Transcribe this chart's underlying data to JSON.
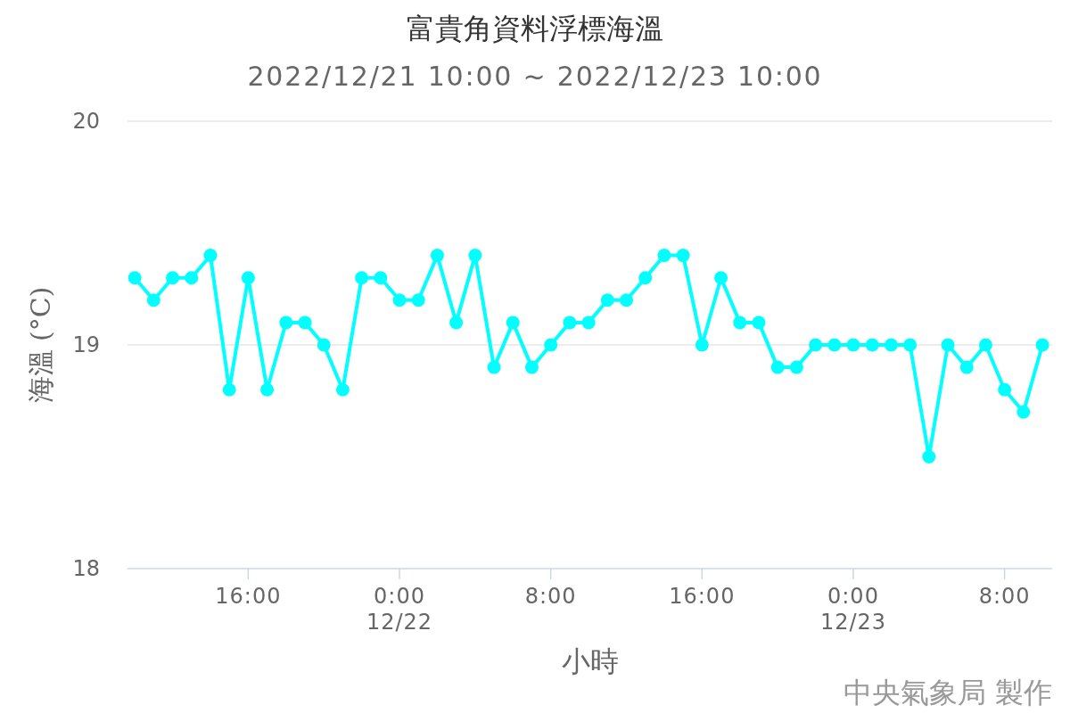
{
  "chart_data": {
    "type": "line",
    "title": "富貴角資料浮標海溫",
    "subtitle": "2022/12/21 10:00 ~ 2022/12/23 10:00",
    "xlabel": "小時",
    "ylabel": "海溫 (°C)",
    "annotations": [
      "中央氣象局 製作"
    ],
    "x": [
      "2022-12-21T10:00",
      "2022-12-21T11:00",
      "2022-12-21T12:00",
      "2022-12-21T13:00",
      "2022-12-21T14:00",
      "2022-12-21T15:00",
      "2022-12-21T16:00",
      "2022-12-21T17:00",
      "2022-12-21T18:00",
      "2022-12-21T19:00",
      "2022-12-21T20:00",
      "2022-12-21T21:00",
      "2022-12-21T22:00",
      "2022-12-21T23:00",
      "2022-12-22T00:00",
      "2022-12-22T01:00",
      "2022-12-22T02:00",
      "2022-12-22T03:00",
      "2022-12-22T04:00",
      "2022-12-22T05:00",
      "2022-12-22T06:00",
      "2022-12-22T07:00",
      "2022-12-22T08:00",
      "2022-12-22T09:00",
      "2022-12-22T10:00",
      "2022-12-22T11:00",
      "2022-12-22T12:00",
      "2022-12-22T13:00",
      "2022-12-22T14:00",
      "2022-12-22T15:00",
      "2022-12-22T16:00",
      "2022-12-22T17:00",
      "2022-12-22T18:00",
      "2022-12-22T19:00",
      "2022-12-22T20:00",
      "2022-12-22T21:00",
      "2022-12-22T22:00",
      "2022-12-22T23:00",
      "2022-12-23T00:00",
      "2022-12-23T01:00",
      "2022-12-23T02:00",
      "2022-12-23T03:00",
      "2022-12-23T04:00",
      "2022-12-23T05:00",
      "2022-12-23T06:00",
      "2022-12-23T07:00",
      "2022-12-23T08:00",
      "2022-12-23T09:00",
      "2022-12-23T10:00"
    ],
    "series": [
      {
        "color": "#00ffff",
        "values": [
          19.3,
          19.2,
          19.3,
          19.3,
          19.4,
          18.8,
          19.3,
          18.8,
          19.1,
          19.1,
          19.0,
          18.8,
          19.3,
          19.3,
          19.2,
          19.2,
          19.4,
          19.1,
          19.4,
          18.9,
          19.1,
          18.9,
          19.0,
          19.1,
          19.1,
          19.2,
          19.2,
          19.3,
          19.4,
          19.4,
          19.0,
          19.3,
          19.1,
          19.1,
          18.9,
          18.9,
          19.0,
          19.0,
          19.0,
          19.0,
          19.0,
          19.0,
          18.5,
          19.0,
          18.9,
          19.0,
          18.8,
          18.7,
          19.0
        ]
      }
    ],
    "xlim": [
      "2022-12-21T09:37",
      "2022-12-23T10:31"
    ],
    "ylim": [
      18,
      20
    ],
    "xticks": [
      {
        "value": "2022-12-21T16:00",
        "label": "16:00"
      },
      {
        "value": "2022-12-22T00:00",
        "label": "0:00\n12/22"
      },
      {
        "value": "2022-12-22T08:00",
        "label": "8:00"
      },
      {
        "value": "2022-12-22T16:00",
        "label": "16:00"
      },
      {
        "value": "2022-12-23T00:00",
        "label": "0:00\n12/23"
      },
      {
        "value": "2022-12-23T08:00",
        "label": "8:00"
      }
    ],
    "yticks": [
      18,
      19,
      20
    ],
    "grid": "y",
    "marker": "circle",
    "line_style": "solid"
  }
}
